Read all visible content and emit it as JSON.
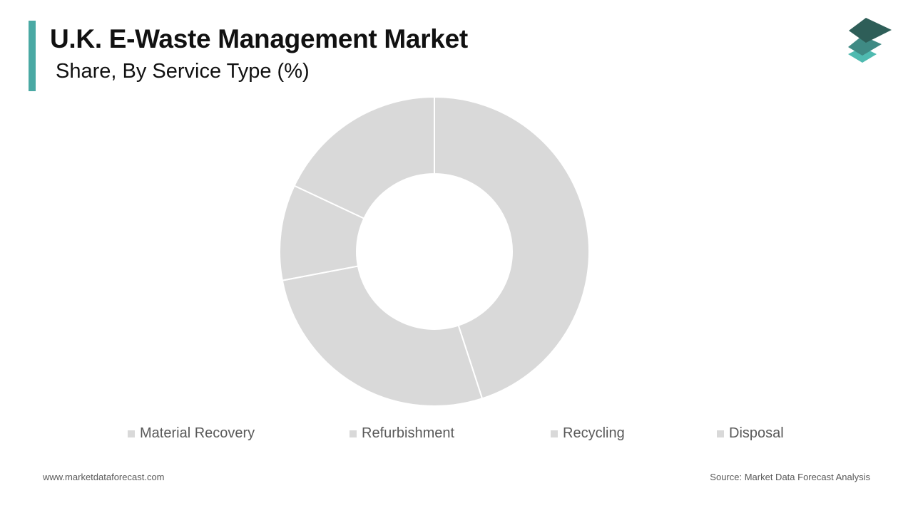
{
  "header": {
    "title": "U.K. E-Waste Management Market",
    "subtitle": "Share, By Service Type (%)"
  },
  "colors": {
    "accent": "#4aa9a4",
    "slice": "#d9d9d9",
    "slice_border": "#ffffff",
    "logo_top": "#2e5e58",
    "logo_mid": "#3f8a84",
    "logo_bottom": "#4fbab0"
  },
  "logo": {
    "icon": "stacked-layers-icon"
  },
  "chart_data": {
    "type": "pie",
    "donut": true,
    "title": "Share, By Service Type (%)",
    "categories": [
      "Material Recovery",
      "Refurbishment",
      "Recycling",
      "Disposal"
    ],
    "values": [
      45,
      27,
      10,
      18
    ],
    "unit": "%",
    "legend_position": "bottom",
    "data_labels": false
  },
  "footer": {
    "website": "www.marketdataforecast.com",
    "source": "Source: Market Data Forecast Analysis"
  }
}
